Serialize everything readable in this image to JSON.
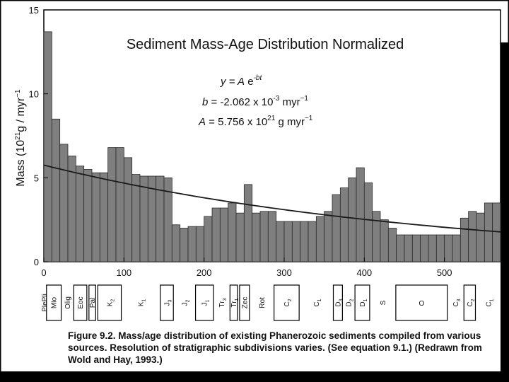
{
  "chart_data": {
    "type": "bar",
    "title": "Sediment Mass-Age Distribution Normalized",
    "ylabel": "Mass (10",
    "ylabel_sup": "21",
    "ylabel_rest": "g / myr",
    "ylabel_sup2": "−1",
    "xlabel": "",
    "xlim": [
      0,
      570
    ],
    "ylim": [
      0,
      15
    ],
    "x_ticks": [
      "0",
      "100",
      "200",
      "300",
      "400",
      "500"
    ],
    "x_tick_values": [
      0,
      100,
      200,
      300,
      400,
      500
    ],
    "y_ticks": [
      "0",
      "5",
      "10",
      "15"
    ],
    "y_tick_values": [
      0,
      5,
      10,
      15
    ],
    "bin_width": 10,
    "bin_starts": [
      0,
      10,
      20,
      30,
      40,
      50,
      60,
      70,
      80,
      90,
      100,
      110,
      120,
      130,
      140,
      150,
      160,
      170,
      180,
      190,
      200,
      210,
      220,
      230,
      240,
      250,
      260,
      270,
      280,
      290,
      300,
      310,
      320,
      330,
      340,
      350,
      360,
      370,
      380,
      390,
      400,
      410,
      420,
      430,
      440,
      450,
      460,
      470,
      480,
      490,
      500,
      510,
      520,
      530,
      540,
      550,
      560
    ],
    "values": [
      13.7,
      8.5,
      7.0,
      6.3,
      5.7,
      5.5,
      5.3,
      5.3,
      6.8,
      6.8,
      6.2,
      5.2,
      5.1,
      5.1,
      5.1,
      5.0,
      2.2,
      2.0,
      2.1,
      2.1,
      2.7,
      3.2,
      3.2,
      3.5,
      2.9,
      4.6,
      2.9,
      3.0,
      3.0,
      2.4,
      2.4,
      2.4,
      2.4,
      2.4,
      2.7,
      3.0,
      4.0,
      4.4,
      5.0,
      5.6,
      4.7,
      3.0,
      2.5,
      2.0,
      1.6,
      1.6,
      1.6,
      1.6,
      1.6,
      1.6,
      1.6,
      1.6,
      2.6,
      3.0,
      2.9,
      3.5,
      3.5
    ],
    "fit_curve": {
      "equation_y": "y = ",
      "equation_a": "A",
      "equation_e": " e",
      "equation_exp": "-bt",
      "b_label": "b",
      "b_text": " = -2.062 x 10",
      "b_exp": "-3",
      "b_unit": " myr",
      "b_unit_exp": "−1",
      "a_label": "A",
      "a_text": " = 5.756 x 10",
      "a_exp": "21",
      "a_unit": " g myr",
      "a_unit_exp": "−1",
      "A": 5.756,
      "b": -0.002062
    },
    "grid": false,
    "legend": "none"
  },
  "strat_units": [
    {
      "label": "PlePli",
      "from": 0,
      "to": 2,
      "boxed": false
    },
    {
      "label": "Mio",
      "from": 2,
      "to": 23,
      "boxed": true
    },
    {
      "label": "Olig",
      "from": 23,
      "to": 36,
      "boxed": false
    },
    {
      "label": "Eoc",
      "from": 36,
      "to": 55,
      "boxed": true
    },
    {
      "label": "Pal",
      "from": 55,
      "to": 66,
      "boxed": true
    },
    {
      "label": "K",
      "sub": "2",
      "from": 66,
      "to": 98,
      "boxed": true
    },
    {
      "label": "K",
      "sub": "1",
      "from": 98,
      "to": 144,
      "boxed": false
    },
    {
      "label": "J",
      "sub": "3",
      "from": 144,
      "to": 163,
      "boxed": true
    },
    {
      "label": "J",
      "sub": "2",
      "from": 163,
      "to": 188,
      "boxed": false
    },
    {
      "label": "J",
      "sub": "1",
      "from": 188,
      "to": 213,
      "boxed": true
    },
    {
      "label": "Tr",
      "sub": "3",
      "from": 213,
      "to": 231,
      "boxed": false
    },
    {
      "label": "Tr",
      "sub": "1",
      "from": 231,
      "to": 243,
      "boxed": true
    },
    {
      "label": "Zec",
      "from": 243,
      "to": 258,
      "boxed": true
    },
    {
      "label": "Rot",
      "from": 258,
      "to": 286,
      "boxed": false
    },
    {
      "label": "C",
      "sub": "2",
      "from": 286,
      "to": 320,
      "boxed": true
    },
    {
      "label": "C",
      "sub": "1",
      "from": 320,
      "to": 360,
      "boxed": false
    },
    {
      "label": "D",
      "sub": "3",
      "from": 360,
      "to": 374,
      "boxed": true
    },
    {
      "label": "D",
      "sub": "2",
      "from": 374,
      "to": 387,
      "boxed": false
    },
    {
      "label": "D",
      "sub": "1",
      "from": 387,
      "to": 408,
      "boxed": true
    },
    {
      "label": "S",
      "from": 408,
      "to": 438,
      "boxed": false
    },
    {
      "label": "O",
      "from": 438,
      "to": 505,
      "boxed": true,
      "horizontal": true
    },
    {
      "label": "C",
      "sub": "3",
      "from": 505,
      "to": 523,
      "boxed": false
    },
    {
      "label": "C",
      "sub": "2",
      "from": 523,
      "to": 540,
      "boxed": true
    },
    {
      "label": "C",
      "sub": "1",
      "from": 540,
      "to": 570,
      "boxed": false
    }
  ],
  "caption": {
    "fig_label": "Figure 9.2.",
    "text": " Mass/age distribution of existing Phanerozoic sediments compiled from various sources. Resolution of stratigraphic subdivisions varies. (See equation 9.1.) (Redrawn from Wold and Hay, 1993.)"
  },
  "colors": {
    "bar_fill": "#7f7f7f",
    "bar_stroke": "#2a2a2a",
    "curve": "#1a1a1a",
    "frame": "#000000"
  }
}
